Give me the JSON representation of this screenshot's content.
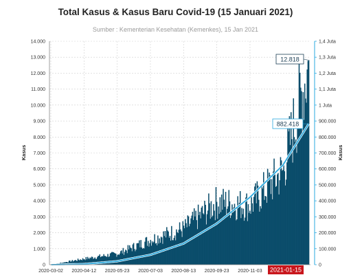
{
  "title": "Total Kasus & Kasus Baru Covid-19 (15 Januari 2021)",
  "subtitle": "Sumber : Kementerian Kesehatan (Kemenkes), 15 Jan 2021",
  "colors": {
    "bars": "#0b4d6b",
    "line": "#2aa9df",
    "grid": "#cfcfcf",
    "date_badge": "#c8151b"
  },
  "chart_data": {
    "type": "bar",
    "series": [
      {
        "name": "Kasus Baru",
        "axis": "left",
        "type": "bar",
        "x": [
          "2020-03-02",
          "2020-04-12",
          "2020-05-23",
          "2020-07-03",
          "2020-08-13",
          "2020-09-23",
          "2020-11-03",
          "2020-12-14",
          "2021-01-15"
        ],
        "values": [
          2,
          380,
          700,
          1600,
          2300,
          4000,
          3800,
          6000,
          12818
        ]
      },
      {
        "name": "Total Kasus",
        "axis": "right",
        "type": "line",
        "x": [
          "2020-03-02",
          "2020-04-12",
          "2020-05-23",
          "2020-07-03",
          "2020-08-13",
          "2020-09-23",
          "2020-11-03",
          "2020-12-14",
          "2021-01-15"
        ],
        "values": [
          2,
          3842,
          21745,
          62142,
          132816,
          257388,
          421731,
          623309,
          882418
        ]
      }
    ],
    "x_ticks": [
      "2020-03-02",
      "2020-04-12",
      "2020-05-23",
      "2020-07-03",
      "2020-08-13",
      "2020-09-23",
      "2020-11-03",
      "2021-01-15"
    ],
    "y_left": {
      "label": "Kasus",
      "range": [
        0,
        14000
      ],
      "ticks": [
        "0",
        "1.000",
        "2.000",
        "3.000",
        "4.000",
        "5.000",
        "6.000",
        "7.000",
        "8.000",
        "9.000",
        "10.000",
        "11.000",
        "12.000",
        "13.000",
        "14.000"
      ]
    },
    "y_right": {
      "label": "Kasus",
      "range": [
        0,
        1400000
      ],
      "ticks": [
        "0",
        "100.000",
        "200.000",
        "300.000",
        "400.000",
        "500.000",
        "600.000",
        "700.000",
        "800.000",
        "900.000",
        "1 Juta",
        "1,1 Juta",
        "1,2 Juta",
        "1,3 Juta",
        "1,4 Juta"
      ]
    },
    "annotations": {
      "latest_new_cases": "12.818",
      "latest_total": "882.418",
      "latest_date": "2021-01-15"
    },
    "grid": true
  }
}
